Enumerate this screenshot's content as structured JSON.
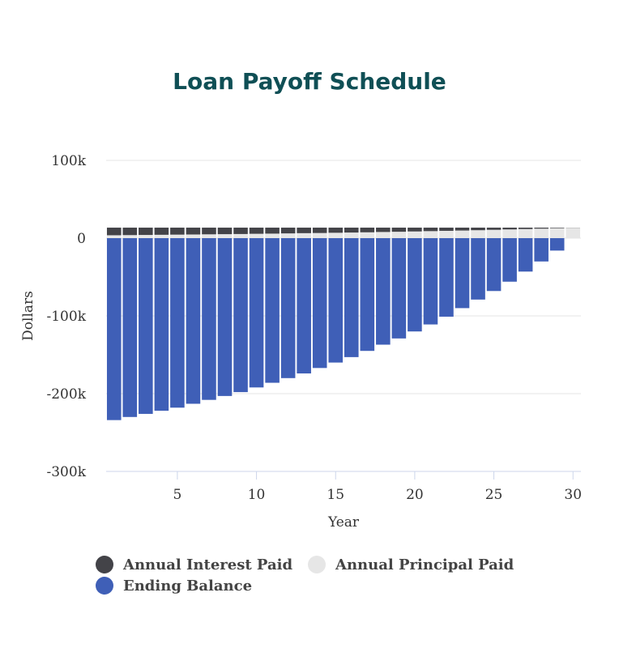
{
  "title": "Loan Payoff Schedule",
  "chart_data": {
    "type": "bar",
    "title": "Loan Payoff Schedule",
    "xlabel": "Year",
    "ylabel": "Dollars",
    "xlim": [
      0.5,
      30.5
    ],
    "ylim": [
      -300000,
      100000
    ],
    "x_ticks": [
      {
        "value": 5,
        "label": "5"
      },
      {
        "value": 10,
        "label": "10"
      },
      {
        "value": 15,
        "label": "15"
      },
      {
        "value": 20,
        "label": "20"
      },
      {
        "value": 25,
        "label": "25"
      },
      {
        "value": 30,
        "label": "30"
      }
    ],
    "y_ticks": [
      {
        "value": 100000,
        "label": "100k"
      },
      {
        "value": 0,
        "label": "0"
      },
      {
        "value": -100000,
        "label": "-100k"
      },
      {
        "value": -200000,
        "label": "-200k"
      },
      {
        "value": -300000,
        "label": "-300k"
      }
    ],
    "grid": true,
    "stacked": true,
    "legend_position": "bottom",
    "x": [
      1,
      2,
      3,
      4,
      5,
      6,
      7,
      8,
      9,
      10,
      11,
      12,
      13,
      14,
      15,
      16,
      17,
      18,
      19,
      20,
      21,
      22,
      23,
      24,
      25,
      26,
      27,
      28,
      29,
      30
    ],
    "series": [
      {
        "name": "Annual Interest Paid",
        "color": "#434348",
        "values": [
          9800,
          9600,
          9400,
          9200,
          9000,
          8800,
          8600,
          8400,
          8200,
          7900,
          7700,
          7400,
          7100,
          6900,
          6600,
          6300,
          6000,
          5600,
          5300,
          4900,
          4500,
          4100,
          3700,
          3300,
          2800,
          2300,
          1800,
          1300,
          700,
          200
        ]
      },
      {
        "name": "Annual Principal Paid",
        "color": "#e6e6e6",
        "values": [
          3700,
          3900,
          4100,
          4300,
          4500,
          4700,
          4900,
          5100,
          5300,
          5600,
          5800,
          6100,
          6400,
          6600,
          6900,
          7200,
          7500,
          7900,
          8200,
          8600,
          9000,
          9400,
          9800,
          10200,
          10700,
          11200,
          11700,
          12200,
          12800,
          13300
        ]
      },
      {
        "name": "Ending Balance",
        "color": "#3f5fb7",
        "values": [
          -234000,
          -230000,
          -226000,
          -222000,
          -218000,
          -213000,
          -208000,
          -203000,
          -198000,
          -192000,
          -186000,
          -180000,
          -174000,
          -167000,
          -160000,
          -153000,
          -145000,
          -137000,
          -129000,
          -120000,
          -111000,
          -101000,
          -90000,
          -79000,
          -68000,
          -56000,
          -43000,
          -30000,
          -16000,
          0
        ]
      }
    ]
  }
}
